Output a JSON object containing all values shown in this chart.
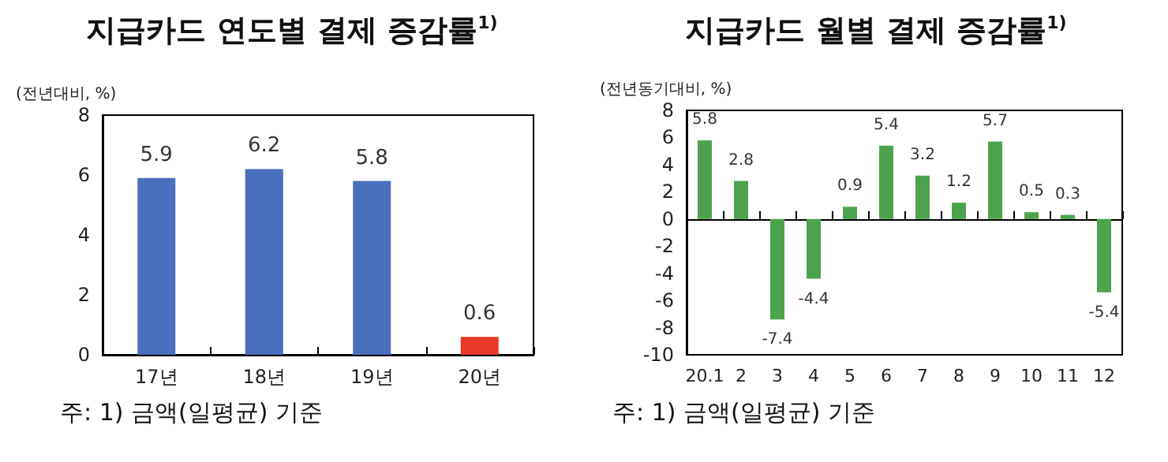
{
  "chart_data": [
    {
      "type": "bar",
      "title": "지급카드 연도별 결제 증감률$^{1)}$",
      "ylabel": "(전년대비, %)",
      "categories": [
        "17년",
        "18년",
        "19년",
        "20년"
      ],
      "values": [
        5.9,
        6.2,
        5.8,
        0.6
      ],
      "colors": [
        "#4a6fbd",
        "#4a6fbd",
        "#4a6fbd",
        "#e8392b"
      ],
      "ylim": [
        0,
        8
      ],
      "yticks": [
        0,
        2,
        4,
        6,
        8
      ],
      "data_labels": true,
      "annotations": [
        "주: 1) 금액(일평균) 기준"
      ]
    },
    {
      "type": "bar",
      "title": "지급카드 월별 결제 증감률$^{1)}$",
      "ylabel": "(전년동기대비, %)",
      "categories": [
        "20.1",
        "2",
        "3",
        "4",
        "5",
        "6",
        "7",
        "8",
        "9",
        "10",
        "11",
        "12"
      ],
      "values": [
        5.8,
        2.8,
        -7.4,
        -4.4,
        0.9,
        5.4,
        3.2,
        1.2,
        5.7,
        0.5,
        0.3,
        -5.4
      ],
      "color": "#4ea24e",
      "ylim": [
        -10,
        8
      ],
      "yticks": [
        -10,
        -8,
        -6,
        -4,
        -2,
        0,
        2,
        4,
        6,
        8
      ],
      "data_labels": true,
      "annotations": [
        "주: 1) 금액(일평균) 기준"
      ]
    }
  ]
}
